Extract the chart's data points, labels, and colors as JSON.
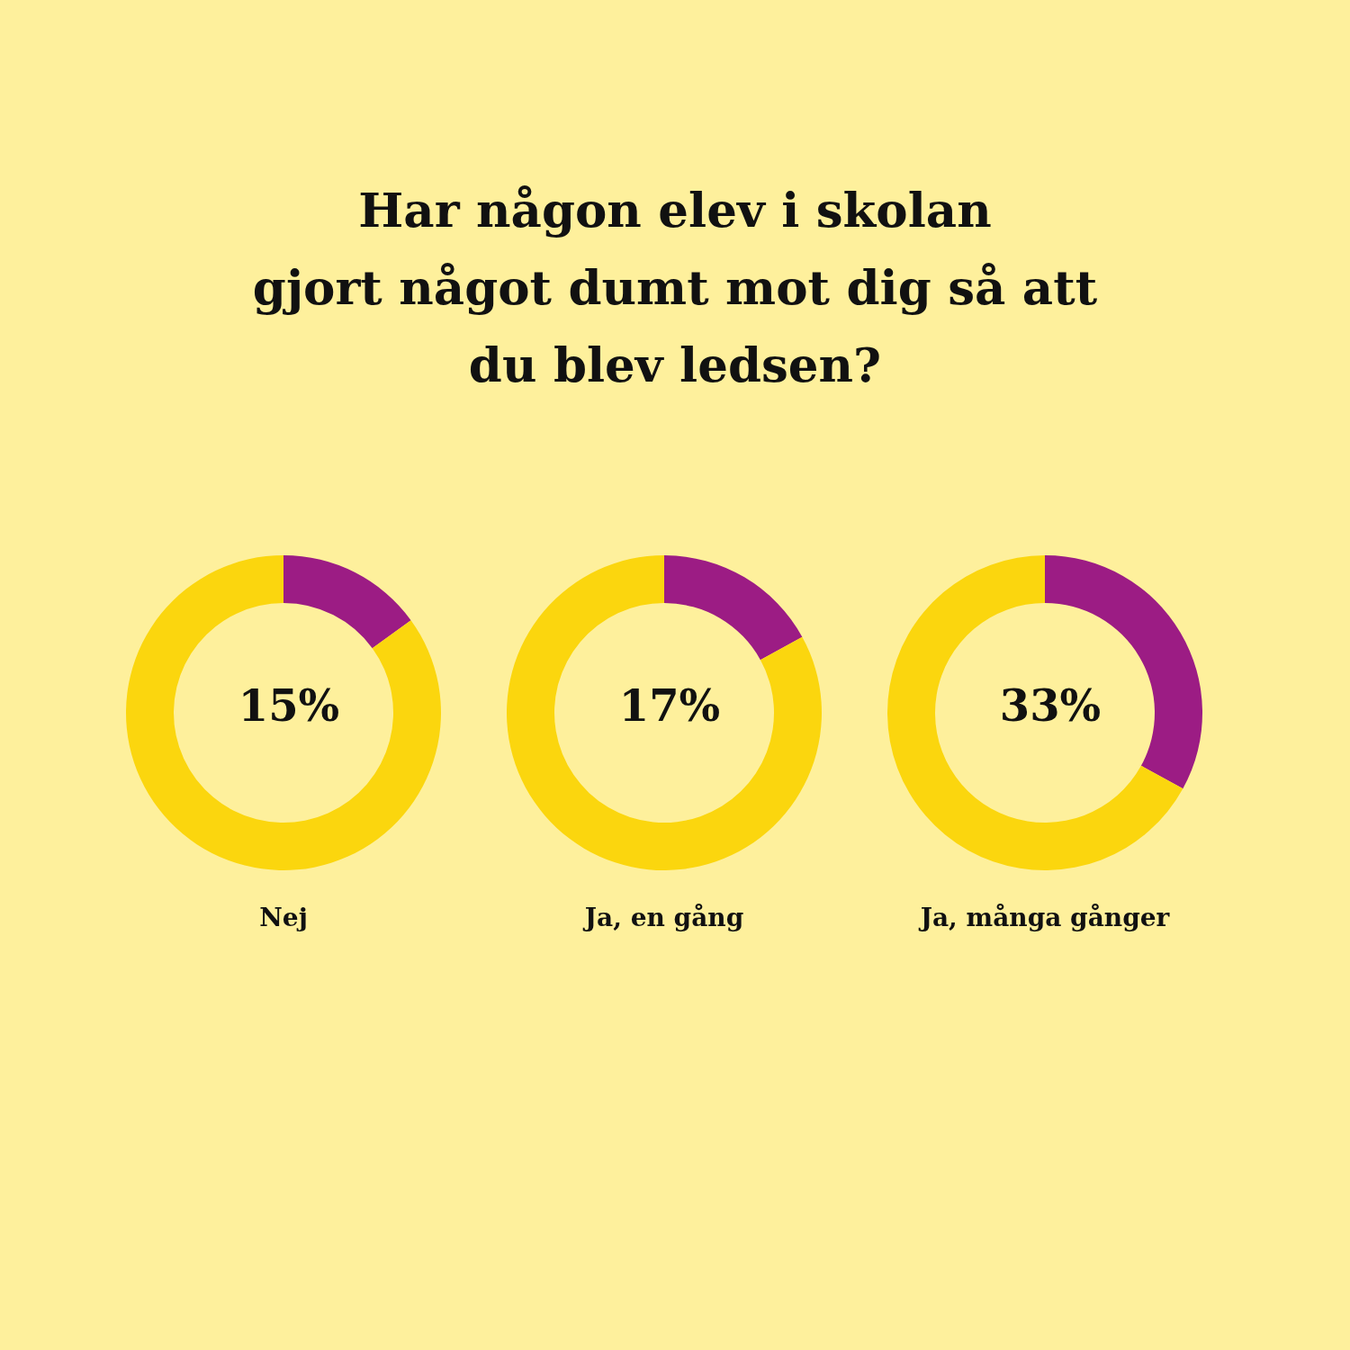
{
  "chart_data": [
    {
      "type": "donut",
      "title": "Har någon elev i skolan\ngjort något dumt mot dig så att\ndu blev ledsen?",
      "xlabel": "Nej",
      "categories": [
        null,
        null
      ],
      "values": [
        15,
        85
      ],
      "colors": [
        "#9c1c84",
        "#fbd60e"
      ],
      "value_labels": [
        "15%",
        null
      ]
    },
    {
      "type": "donut",
      "xlabel": "Ja, en gång",
      "categories": [
        null,
        null
      ],
      "values": [
        17,
        83
      ],
      "colors": [
        "#9c1c84",
        "#fbd60e"
      ],
      "value_labels": [
        "17%",
        null
      ]
    },
    {
      "type": "donut",
      "xlabel": "Ja, många gånger",
      "categories": [
        null,
        null
      ],
      "values": [
        33,
        67
      ],
      "colors": [
        "#9c1c84",
        "#fbd60e"
      ],
      "value_labels": [
        "33%",
        null
      ]
    }
  ]
}
